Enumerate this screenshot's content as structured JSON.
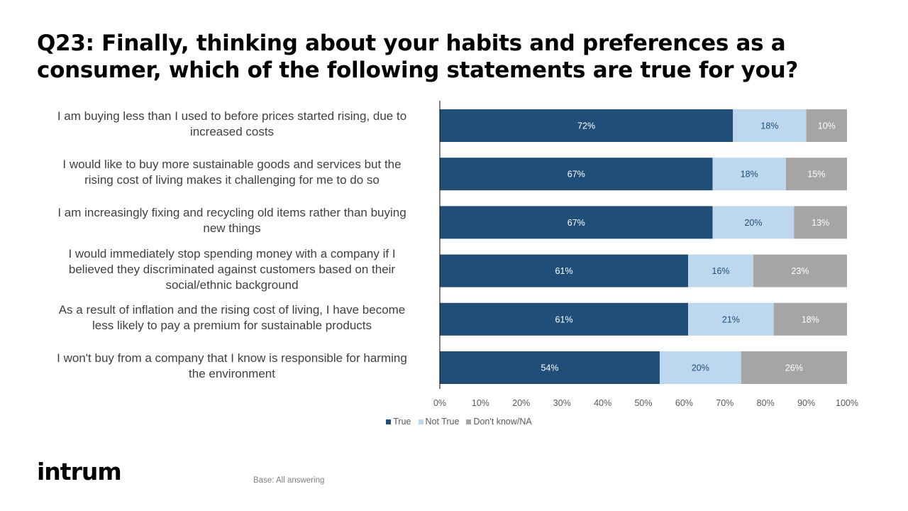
{
  "title_lines": [
    "Q23: Finally, thinking about your habits and preferences as a",
    "consumer, which of the following statements are true for you?"
  ],
  "category_lines": [
    [
      "I am buying less than I used to before prices started rising, due to",
      "increased costs"
    ],
    [
      "I would like to buy more sustainable goods and services but the",
      "rising cost of living makes it challenging for me to do so"
    ],
    [
      "I am increasingly fixing and recycling old items rather than buying",
      "new things"
    ],
    [
      "I would immediately stop spending money with a company if I",
      "believed  they discriminated against customers based on their",
      "social/ethnic background"
    ],
    [
      "As a result of inflation and the rising cost of living, I have become",
      "less likely to pay a premium for sustainable products"
    ],
    [
      "I won't buy from a company that I know is responsible for harming",
      "the environment"
    ]
  ],
  "chart_data": {
    "type": "bar",
    "orientation": "horizontal",
    "stacked": "100%",
    "categories": [
      "I am buying less than I used to before prices started rising, due to increased costs",
      "I would like to buy more sustainable goods and services but the rising cost of living makes it challenging for me to do so",
      "I am increasingly fixing and recycling old items rather than buying new things",
      "I would immediately stop spending money with a company if I believed  they discriminated against customers based on their social/ethnic background",
      "As a result of inflation and the rising cost of living, I have become less likely to pay a premium for sustainable products",
      "I won't buy from a company that I know is responsible for harming the environment"
    ],
    "series": [
      {
        "name": "True",
        "color": "#1f4e79",
        "label_color": "#ffffff",
        "values": [
          72,
          67,
          67,
          61,
          61,
          54
        ]
      },
      {
        "name": "Not True",
        "color": "#bdd7ee",
        "label_color": "#1f4e79",
        "values": [
          18,
          18,
          20,
          16,
          21,
          20
        ]
      },
      {
        "name": "Don't know/NA",
        "color": "#a5a5a5",
        "label_color": "#ffffff",
        "values": [
          10,
          15,
          13,
          23,
          18,
          26
        ]
      }
    ],
    "xlim": [
      0,
      100
    ],
    "x_ticks": [
      "0%",
      "10%",
      "20%",
      "30%",
      "40%",
      "50%",
      "60%",
      "70%",
      "80%",
      "90%",
      "100%"
    ],
    "legend_position": "bottom",
    "grid": false
  },
  "logo_text": "intrum",
  "base_note": "Base: All answering"
}
